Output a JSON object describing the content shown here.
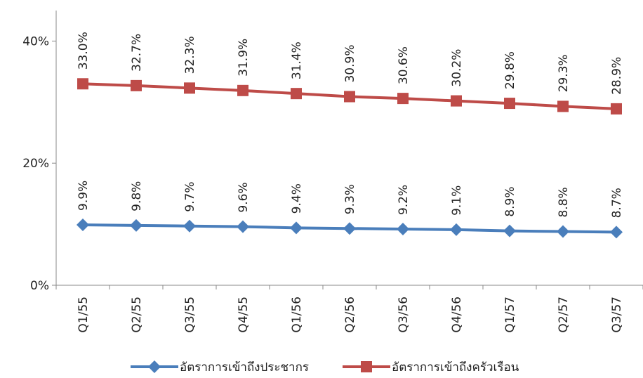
{
  "chart_data": {
    "type": "line",
    "categories": [
      "Q1/55",
      "Q2/55",
      "Q3/55",
      "Q4/55",
      "Q1/56",
      "Q2/56",
      "Q3/56",
      "Q4/56",
      "Q1/57",
      "Q2/57",
      "Q3/57"
    ],
    "ylim": [
      0,
      45
    ],
    "yticks": [
      {
        "value": 0,
        "label": "0%"
      },
      {
        "value": 20,
        "label": "20%"
      },
      {
        "value": 40,
        "label": "40%"
      }
    ],
    "grid": false,
    "legend_position": "bottom",
    "series": [
      {
        "name": "อัตราการเข้าถึงประชากร",
        "color": "#4A7EBB",
        "marker": "diamond",
        "values": [
          9.9,
          9.8,
          9.7,
          9.6,
          9.4,
          9.3,
          9.2,
          9.1,
          8.9,
          8.8,
          8.7
        ],
        "labels": [
          "9.9%",
          "9.8%",
          "9.7%",
          "9.6%",
          "9.4%",
          "9.3%",
          "9.2%",
          "9.1%",
          "8.9%",
          "8.8%",
          "8.7%"
        ]
      },
      {
        "name": "อัตราการเข้าถึงครัวเรือน",
        "color": "#BE4B48",
        "marker": "square",
        "values": [
          33.0,
          32.7,
          32.3,
          31.9,
          31.4,
          30.9,
          30.6,
          30.2,
          29.8,
          29.3,
          28.9
        ],
        "labels": [
          "33.0%",
          "32.7%",
          "32.3%",
          "31.9%",
          "31.4%",
          "30.9%",
          "30.6%",
          "30.2%",
          "29.8%",
          "29.3%",
          "28.9%"
        ]
      }
    ]
  }
}
